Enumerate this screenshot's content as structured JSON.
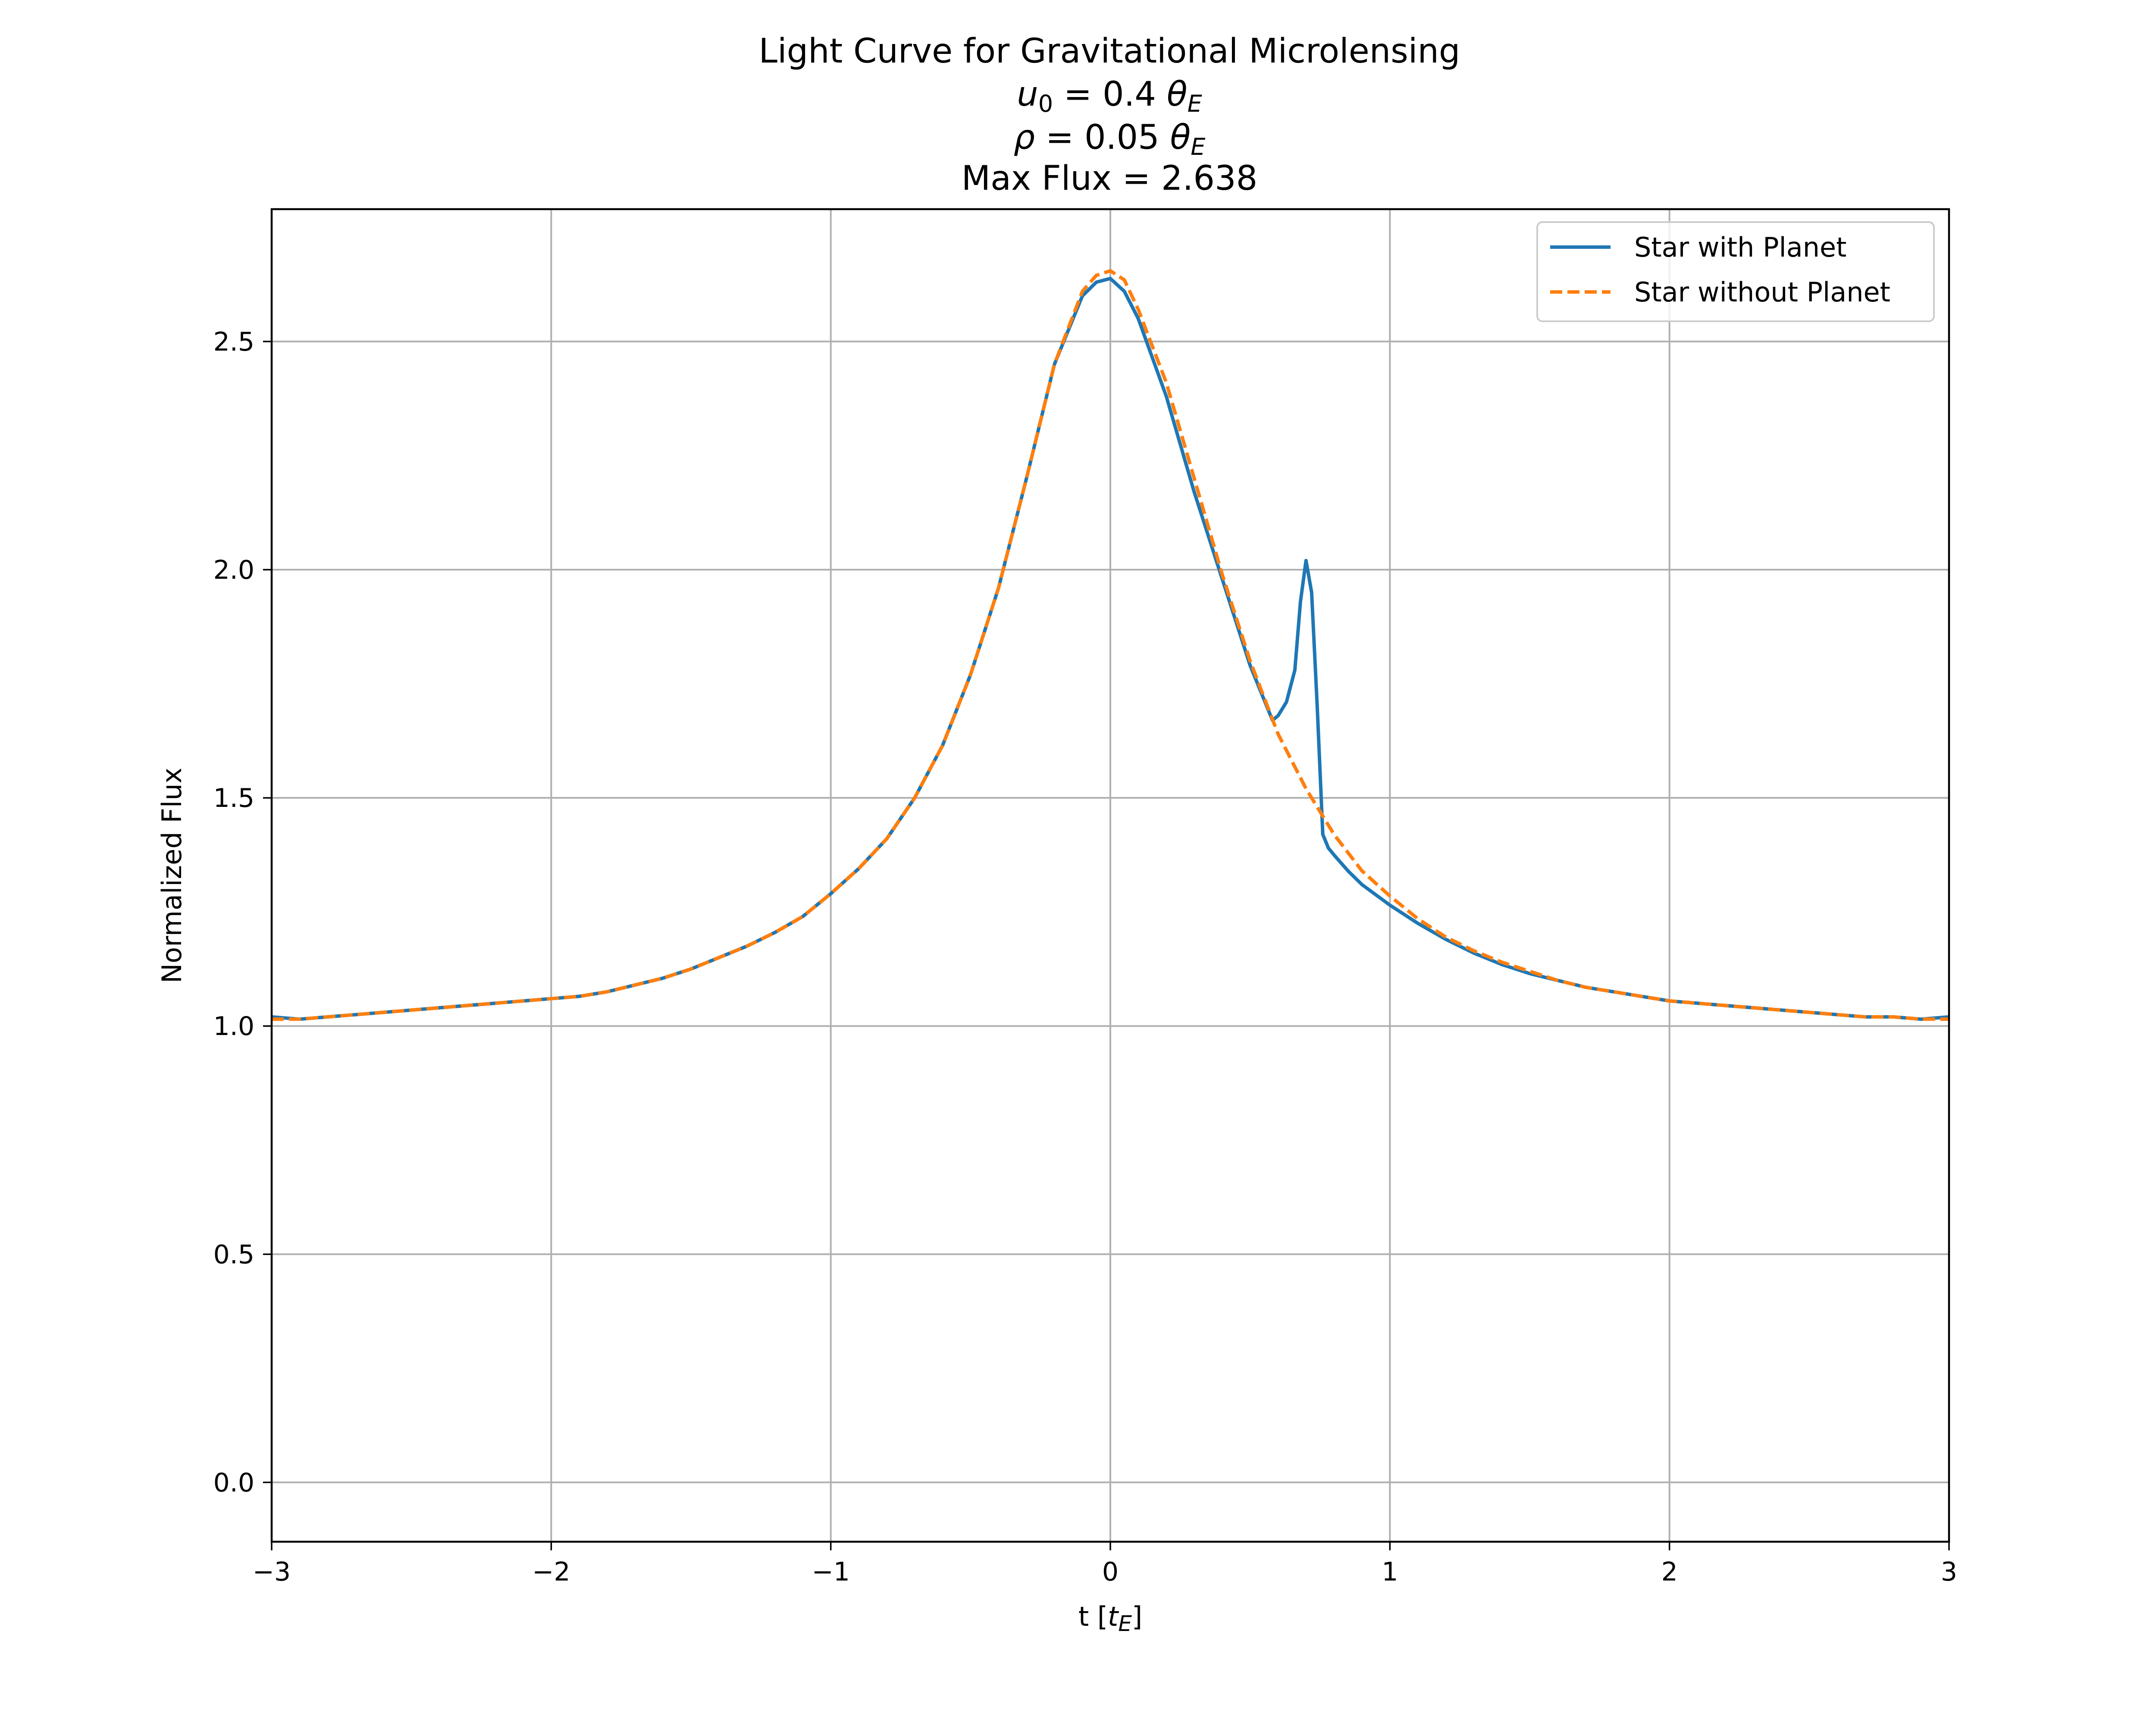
{
  "chart_data": {
    "type": "line",
    "title_lines": [
      {
        "main": "Light Curve for Gravitational Microlensing"
      },
      {
        "sym": "u",
        "sub": "0",
        "rest": " = 0.4 ",
        "sym2": "θ",
        "sub2": "E"
      },
      {
        "sym": "ρ",
        "sub": "",
        "rest": " = 0.05 ",
        "sym2": "θ",
        "sub2": "E"
      },
      {
        "main": "Max Flux = 2.638"
      }
    ],
    "xlabel": {
      "main": "t [",
      "sym": "t",
      "sub": "E",
      "end": "]"
    },
    "ylabel": "Normalized Flux",
    "xlim": [
      -3,
      3
    ],
    "ylim": [
      -0.13,
      2.79
    ],
    "xticks": [
      -3,
      -2,
      -1,
      0,
      1,
      2,
      3
    ],
    "xtick_labels": [
      "−3",
      "−2",
      "−1",
      "0",
      "1",
      "2",
      "3"
    ],
    "yticks": [
      0.0,
      0.5,
      1.0,
      1.5,
      2.0,
      2.5
    ],
    "ytick_labels": [
      "0.0",
      "0.5",
      "1.0",
      "1.5",
      "2.0",
      "2.5"
    ],
    "grid": true,
    "legend_position": "top-right",
    "series": [
      {
        "name": "Star with Planet",
        "color": "#1f77b4",
        "style": "solid",
        "x": [
          -3.0,
          -2.9,
          -2.8,
          -2.7,
          -2.6,
          -2.5,
          -2.4,
          -2.3,
          -2.2,
          -2.1,
          -2.0,
          -1.9,
          -1.8,
          -1.7,
          -1.6,
          -1.5,
          -1.4,
          -1.3,
          -1.2,
          -1.1,
          -1.0,
          -0.9,
          -0.8,
          -0.7,
          -0.6,
          -0.5,
          -0.4,
          -0.3,
          -0.2,
          -0.1,
          -0.05,
          0.0,
          0.05,
          0.1,
          0.2,
          0.3,
          0.4,
          0.5,
          0.58,
          0.6,
          0.63,
          0.66,
          0.68,
          0.7,
          0.72,
          0.74,
          0.76,
          0.78,
          0.8,
          0.85,
          0.9,
          1.0,
          1.1,
          1.2,
          1.3,
          1.4,
          1.5,
          1.6,
          1.7,
          1.8,
          1.9,
          2.0,
          2.1,
          2.2,
          2.3,
          2.4,
          2.5,
          2.6,
          2.7,
          2.8,
          2.9,
          3.0
        ],
        "y": [
          1.02,
          1.015,
          1.02,
          1.025,
          1.03,
          1.035,
          1.04,
          1.045,
          1.05,
          1.055,
          1.06,
          1.065,
          1.075,
          1.09,
          1.105,
          1.125,
          1.15,
          1.175,
          1.205,
          1.24,
          1.29,
          1.345,
          1.41,
          1.5,
          1.615,
          1.77,
          1.96,
          2.2,
          2.45,
          2.6,
          2.63,
          2.638,
          2.61,
          2.55,
          2.38,
          2.17,
          1.98,
          1.79,
          1.67,
          1.68,
          1.71,
          1.78,
          1.93,
          2.02,
          1.95,
          1.7,
          1.42,
          1.39,
          1.375,
          1.34,
          1.31,
          1.265,
          1.225,
          1.19,
          1.16,
          1.135,
          1.115,
          1.1,
          1.085,
          1.075,
          1.065,
          1.055,
          1.05,
          1.045,
          1.04,
          1.035,
          1.03,
          1.025,
          1.02,
          1.02,
          1.015,
          1.02
        ]
      },
      {
        "name": "Star without Planet",
        "color": "#ff7f0e",
        "style": "dashed",
        "x": [
          -3.0,
          -2.9,
          -2.8,
          -2.7,
          -2.6,
          -2.5,
          -2.4,
          -2.3,
          -2.2,
          -2.1,
          -2.0,
          -1.9,
          -1.8,
          -1.7,
          -1.6,
          -1.5,
          -1.4,
          -1.3,
          -1.2,
          -1.1,
          -1.0,
          -0.9,
          -0.8,
          -0.7,
          -0.6,
          -0.5,
          -0.4,
          -0.3,
          -0.2,
          -0.1,
          -0.05,
          0.0,
          0.05,
          0.1,
          0.2,
          0.3,
          0.4,
          0.5,
          0.6,
          0.7,
          0.8,
          0.9,
          1.0,
          1.1,
          1.2,
          1.3,
          1.4,
          1.5,
          1.6,
          1.7,
          1.8,
          1.9,
          2.0,
          2.1,
          2.2,
          2.3,
          2.4,
          2.5,
          2.6,
          2.7,
          2.8,
          2.9,
          3.0
        ],
        "y": [
          1.015,
          1.015,
          1.02,
          1.025,
          1.03,
          1.035,
          1.04,
          1.045,
          1.05,
          1.055,
          1.06,
          1.065,
          1.075,
          1.09,
          1.105,
          1.125,
          1.15,
          1.175,
          1.205,
          1.24,
          1.29,
          1.345,
          1.41,
          1.5,
          1.615,
          1.77,
          1.96,
          2.2,
          2.45,
          2.61,
          2.645,
          2.655,
          2.635,
          2.57,
          2.41,
          2.2,
          1.99,
          1.8,
          1.64,
          1.52,
          1.42,
          1.34,
          1.285,
          1.235,
          1.195,
          1.165,
          1.14,
          1.12,
          1.1,
          1.085,
          1.075,
          1.065,
          1.055,
          1.05,
          1.045,
          1.04,
          1.035,
          1.03,
          1.025,
          1.02,
          1.02,
          1.015,
          1.015
        ]
      }
    ]
  }
}
